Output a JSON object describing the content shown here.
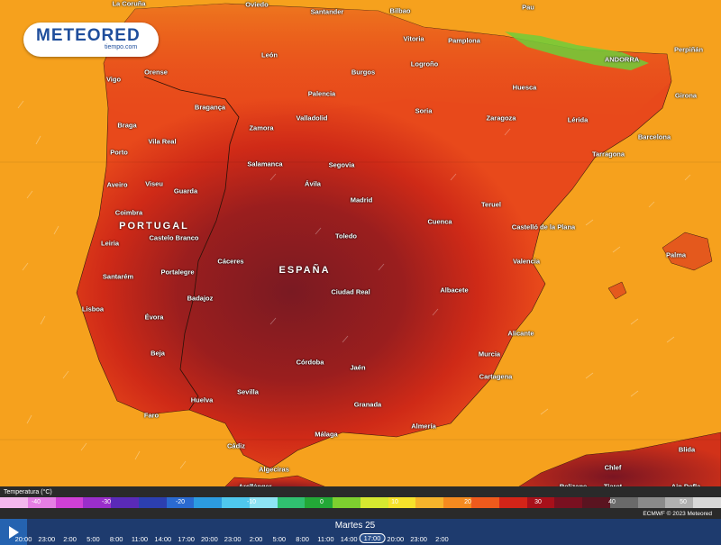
{
  "logo": {
    "brand": "METEORED",
    "sub": "tiempo.com"
  },
  "countries": {
    "portugal": "PORTUGAL",
    "espana": "ESPAÑA"
  },
  "cities": [
    {
      "name": "La Coruña"
    },
    {
      "name": "Oviedo"
    },
    {
      "name": "Santander"
    },
    {
      "name": "Bilbao"
    },
    {
      "name": "Pau"
    },
    {
      "name": "Vitoria"
    },
    {
      "name": "Pamplona"
    },
    {
      "name": "Perpiñán"
    },
    {
      "name": "León"
    },
    {
      "name": "Orense"
    },
    {
      "name": "Vigo"
    },
    {
      "name": "Burgos"
    },
    {
      "name": "Logroño"
    },
    {
      "name": "ANDORRA"
    },
    {
      "name": "Girona"
    },
    {
      "name": "Huesca"
    },
    {
      "name": "Palencia"
    },
    {
      "name": "Bragança"
    },
    {
      "name": "Braga"
    },
    {
      "name": "Zamora"
    },
    {
      "name": "Valladolid"
    },
    {
      "name": "Soria"
    },
    {
      "name": "Zaragoza"
    },
    {
      "name": "Lérida"
    },
    {
      "name": "Barcelona"
    },
    {
      "name": "Vila Real"
    },
    {
      "name": "Porto"
    },
    {
      "name": "Tarragona"
    },
    {
      "name": "Salamanca"
    },
    {
      "name": "Segovia"
    },
    {
      "name": "Aveiro"
    },
    {
      "name": "Viseu"
    },
    {
      "name": "Guarda"
    },
    {
      "name": "Ávila"
    },
    {
      "name": "Coimbra"
    },
    {
      "name": "Madrid"
    },
    {
      "name": "Teruel"
    },
    {
      "name": "Cuenca"
    },
    {
      "name": "Castelló de la Plana"
    },
    {
      "name": "Leiria"
    },
    {
      "name": "Castelo Branco"
    },
    {
      "name": "Toledo"
    },
    {
      "name": "Palma"
    },
    {
      "name": "Cáceres"
    },
    {
      "name": "Valencia"
    },
    {
      "name": "Portalegre"
    },
    {
      "name": "Santarém"
    },
    {
      "name": "Badajoz"
    },
    {
      "name": "Ciudad Real"
    },
    {
      "name": "Albacete"
    },
    {
      "name": "Lisboa"
    },
    {
      "name": "Évora"
    },
    {
      "name": "Alicante"
    },
    {
      "name": "Beja"
    },
    {
      "name": "Murcia"
    },
    {
      "name": "Córdoba"
    },
    {
      "name": "Jaén"
    },
    {
      "name": "Cartagena"
    },
    {
      "name": "Sevilla"
    },
    {
      "name": "Huelva"
    },
    {
      "name": "Granada"
    },
    {
      "name": "Faro"
    },
    {
      "name": "Almería"
    },
    {
      "name": "Málaga"
    },
    {
      "name": "Cádiz"
    },
    {
      "name": "Blida"
    },
    {
      "name": "Algeciras"
    },
    {
      "name": "Chlef"
    },
    {
      "name": "Tánger"
    },
    {
      "name": "Relizane"
    },
    {
      "name": "Arcila"
    },
    {
      "name": "Tiaret"
    },
    {
      "name": "Ain Defla"
    }
  ],
  "legend": {
    "title": "Temperatura (°C)",
    "ticks": [
      "-40",
      "-30",
      "-20",
      "-10",
      "0",
      "10",
      "20",
      "30",
      "40",
      "50"
    ],
    "colors": [
      "#f4b8ee",
      "#e67fe4",
      "#d040d6",
      "#9a2ecb",
      "#5a2ab8",
      "#2c3fb0",
      "#2a6ad0",
      "#2c9be0",
      "#4fc8ee",
      "#8de4f4",
      "#30c070",
      "#23a837",
      "#7dd02f",
      "#d6e830",
      "#f7e22b",
      "#f7b42b",
      "#f58a1f",
      "#ef5a1c",
      "#d42418",
      "#a8101a",
      "#7a1020",
      "#5a1420",
      "#6a6a6a",
      "#8a8a8a",
      "#b0b0b0",
      "#d8d8d8"
    ],
    "credit": "ECMWF © 2023 Meteored"
  },
  "timeline": {
    "day": "Martes 25",
    "hours": [
      "20:00",
      "23:00",
      "2:00",
      "5:00",
      "8:00",
      "11:00",
      "14:00",
      "17:00",
      "20:00",
      "23:00",
      "2:00",
      "5:00",
      "8:00",
      "11:00",
      "14:00",
      "17:00",
      "20:00",
      "23:00",
      "2:00"
    ],
    "current": "17:00"
  }
}
